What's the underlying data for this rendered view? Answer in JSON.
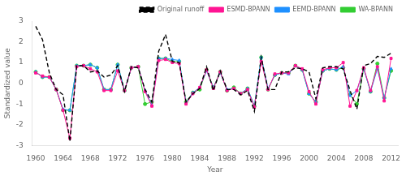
{
  "chart_data": {
    "type": "line",
    "xlabel": "Year",
    "ylabel": "Standardized value",
    "x": [
      1960,
      1961,
      1962,
      1963,
      1964,
      1965,
      1966,
      1967,
      1968,
      1969,
      1970,
      1971,
      1972,
      1973,
      1974,
      1975,
      1976,
      1977,
      1978,
      1979,
      1980,
      1981,
      1982,
      1983,
      1984,
      1985,
      1986,
      1987,
      1988,
      1989,
      1990,
      1991,
      1992,
      1993,
      1994,
      1995,
      1996,
      1997,
      1998,
      1999,
      2000,
      2001,
      2002,
      2003,
      2004,
      2005,
      2006,
      2007,
      2008,
      2009,
      2010,
      2011,
      2012
    ],
    "series": [
      {
        "name": "Original runoff",
        "color": "#000000",
        "line_style": "dashed",
        "marker": "none",
        "values": [
          2.75,
          2.1,
          0.5,
          -0.3,
          -0.55,
          -2.8,
          0.85,
          0.85,
          0.55,
          0.6,
          0.3,
          0.4,
          0.85,
          -0.4,
          0.8,
          0.75,
          -0.3,
          -0.9,
          1.55,
          2.35,
          1.05,
          1.0,
          -0.9,
          -0.5,
          -0.25,
          0.8,
          -0.35,
          0.6,
          -0.3,
          -0.3,
          -0.55,
          -0.35,
          -1.35,
          1.25,
          -0.3,
          -0.3,
          0.55,
          0.55,
          0.75,
          0.7,
          0.55,
          -0.75,
          0.75,
          0.8,
          0.8,
          0.7,
          -0.35,
          -1.25,
          0.85,
          0.95,
          1.3,
          1.25,
          1.45
        ]
      },
      {
        "name": "ESMD-BPANN",
        "color": "#FF1493",
        "line_style": "solid",
        "marker": "square",
        "values": [
          0.5,
          0.35,
          0.3,
          -0.3,
          -1.3,
          -2.65,
          0.8,
          0.85,
          0.7,
          0.55,
          -0.35,
          -0.35,
          0.6,
          -0.35,
          0.75,
          0.8,
          -0.4,
          -1.1,
          1.1,
          1.15,
          1.0,
          0.95,
          -1.0,
          -0.5,
          -0.2,
          0.65,
          -0.25,
          0.55,
          -0.35,
          -0.25,
          -0.5,
          -0.3,
          -1.15,
          1.05,
          -0.3,
          0.45,
          0.5,
          0.5,
          0.85,
          0.7,
          -0.4,
          -1.0,
          0.65,
          0.75,
          0.75,
          1.0,
          -1.1,
          -0.35,
          0.75,
          -0.35,
          0.8,
          -0.85,
          1.2
        ]
      },
      {
        "name": "EEMD-BPANN",
        "color": "#1E90FF",
        "line_style": "solid",
        "marker": "triangle",
        "values": [
          0.55,
          0.3,
          0.3,
          -0.3,
          -1.25,
          -1.3,
          0.85,
          0.85,
          0.9,
          0.75,
          -0.3,
          -0.3,
          0.9,
          -0.35,
          0.75,
          0.8,
          -0.35,
          -1.05,
          1.2,
          1.2,
          1.15,
          1.1,
          -0.95,
          -0.45,
          -0.2,
          0.6,
          -0.2,
          0.5,
          -0.3,
          -0.25,
          -0.5,
          -0.25,
          -1.1,
          1.25,
          -0.25,
          0.4,
          0.5,
          0.45,
          0.85,
          0.65,
          -0.5,
          -0.9,
          0.6,
          0.7,
          0.65,
          0.8,
          -0.6,
          -0.35,
          0.7,
          -0.4,
          0.7,
          -0.7,
          0.7
        ]
      },
      {
        "name": "WA-BPANN",
        "color": "#32CD32",
        "line_style": "solid",
        "marker": "circle",
        "values": [
          0.55,
          0.3,
          0.3,
          -0.3,
          -1.3,
          -1.3,
          0.85,
          0.85,
          0.9,
          0.75,
          -0.3,
          -0.3,
          0.9,
          -0.35,
          0.75,
          0.8,
          -1.0,
          -0.9,
          1.2,
          1.2,
          1.05,
          1.05,
          -0.9,
          -0.45,
          -0.3,
          0.65,
          -0.2,
          0.55,
          -0.35,
          -0.2,
          -0.5,
          -0.25,
          -1.1,
          1.25,
          -0.3,
          0.4,
          0.5,
          0.5,
          0.85,
          0.65,
          -0.5,
          -0.9,
          0.6,
          0.7,
          0.65,
          0.75,
          -0.55,
          -1.0,
          0.7,
          -0.4,
          0.95,
          -0.7,
          0.6
        ]
      }
    ],
    "xlim": [
      1959.5,
      2013
    ],
    "xticks": [
      1960,
      1964,
      1968,
      1972,
      1976,
      1980,
      1984,
      1988,
      1992,
      1996,
      2000,
      2004,
      2008,
      2012
    ],
    "ylim": [
      -3,
      3
    ],
    "yticks": [
      -3,
      -2,
      -1,
      0,
      1,
      2,
      3
    ],
    "grid": false,
    "legend": "upper right"
  }
}
